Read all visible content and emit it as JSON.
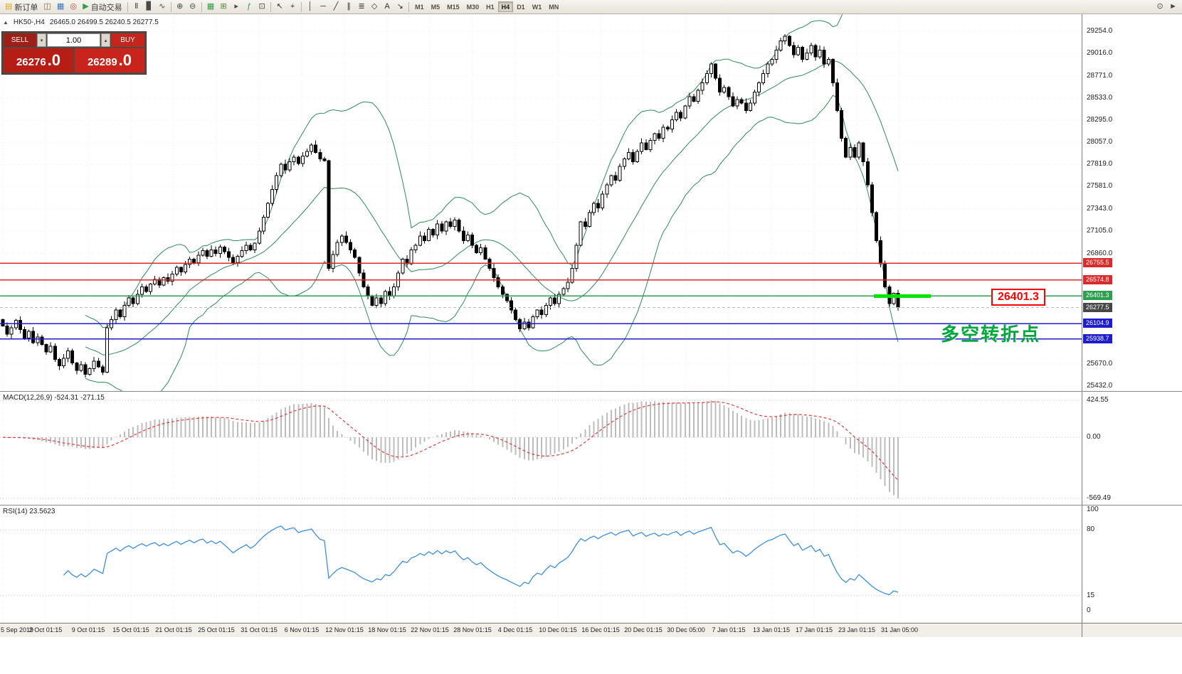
{
  "toolbar": {
    "items": [
      {
        "name": "new-order-button",
        "icon": "new-order-icon",
        "glyph": "▤",
        "glyph_color": "#d8a826",
        "label": "新订单"
      },
      {
        "name": "charts-window-button",
        "icon": "chart-window-icon",
        "glyph": "◫",
        "glyph_color": "#8a6d2f"
      },
      {
        "name": "market-watch-button",
        "icon": "market-watch-icon",
        "glyph": "▦",
        "glyph_color": "#3a77b8"
      },
      {
        "name": "alerts-button",
        "icon": "target-icon",
        "glyph": "◎",
        "glyph_color": "#b84a3a"
      },
      {
        "name": "autotrading-button",
        "icon": "play-icon",
        "glyph": "▶",
        "glyph_color": "#2f9e44",
        "label": "自动交易"
      },
      {
        "type": "sep"
      },
      {
        "name": "bar-chart-button",
        "icon": "bar-chart-icon",
        "glyph": "Ⅱ",
        "glyph_color": "#4a4a4a"
      },
      {
        "name": "candlestick-chart-button",
        "icon": "candlestick-icon",
        "glyph": "▊",
        "glyph_color": "#4a4a4a"
      },
      {
        "name": "line-chart-button",
        "icon": "line-chart-icon",
        "glyph": "∿",
        "glyph_color": "#4a4a4a"
      },
      {
        "type": "sep"
      },
      {
        "name": "zoom-in-button",
        "icon": "zoom-in-icon",
        "glyph": "⊕",
        "glyph_color": "#4a4a4a"
      },
      {
        "name": "zoom-out-button",
        "icon": "zoom-out-icon",
        "glyph": "⊖",
        "glyph_color": "#4a4a4a"
      },
      {
        "type": "sep"
      },
      {
        "name": "tile-windows-button",
        "icon": "tile-windows-icon",
        "glyph": "▦",
        "glyph_color": "#2f9e44"
      },
      {
        "name": "auto-arrange-button",
        "icon": "grid-icon",
        "glyph": "⊞",
        "glyph_color": "#55803a"
      },
      {
        "name": "chart-shift-button",
        "icon": "chart-shift-icon",
        "glyph": "▸",
        "glyph_color": "#4a4a4a"
      },
      {
        "name": "indicators-button",
        "icon": "indicators-icon",
        "glyph": "ƒ",
        "glyph_color": "#2f9e44"
      },
      {
        "name": "templates-button",
        "icon": "templates-icon",
        "glyph": "⊡",
        "glyph_color": "#4a4a4a"
      },
      {
        "type": "sep"
      },
      {
        "name": "cursor-button",
        "icon": "cursor-icon",
        "glyph": "↖",
        "glyph_color": "#333333"
      },
      {
        "name": "crosshair-button",
        "icon": "crosshair-icon",
        "glyph": "+",
        "glyph_color": "#333333"
      },
      {
        "type": "sep"
      },
      {
        "name": "vertical-line-button",
        "icon": "vertical-line-icon",
        "glyph": "│",
        "glyph_color": "#333333"
      },
      {
        "name": "horizontal-line-button",
        "icon": "horizontal-line-icon",
        "glyph": "─",
        "glyph_color": "#333333"
      },
      {
        "name": "trendline-button",
        "icon": "trendline-icon",
        "glyph": "╱",
        "glyph_color": "#333333"
      },
      {
        "name": "channel-button",
        "icon": "channel-icon",
        "glyph": "∥",
        "glyph_color": "#333333"
      },
      {
        "name": "fibonacci-button",
        "icon": "fibonacci-icon",
        "glyph": "≣",
        "glyph_color": "#333333"
      },
      {
        "name": "shapes-button",
        "icon": "shapes-icon",
        "glyph": "◇",
        "glyph_color": "#333333"
      },
      {
        "name": "text-button",
        "icon": "text-icon",
        "glyph": "A",
        "glyph_color": "#333333"
      },
      {
        "name": "arrows-button",
        "icon": "arrows-icon",
        "glyph": "↘",
        "glyph_color": "#333333"
      },
      {
        "type": "sep"
      }
    ],
    "timeframes": [
      "M1",
      "M5",
      "M15",
      "M30",
      "H1",
      "H4",
      "D1",
      "W1",
      "MN"
    ],
    "active_timeframe": "H4",
    "right_items": [
      {
        "name": "magnifier-button",
        "icon": "magnifier-icon",
        "glyph": "⊙",
        "glyph_color": "#4a4a4a"
      },
      {
        "name": "pointer-button",
        "icon": "pointer-icon",
        "glyph": "►",
        "glyph_color": "#4a4a4a"
      }
    ]
  },
  "symbol_info": {
    "toggle_glyph": "▲",
    "name": "HK50-,H4",
    "ohlc": "26465.0 26499.5 26240.5 26277.5"
  },
  "trade_panel": {
    "sell_label": "SELL",
    "buy_label": "BUY",
    "volume": "1.00",
    "spin_down_glyph": "▾",
    "spin_up_glyph": "▴",
    "sell_price_main": "26276",
    "sell_price_frac": ".0",
    "buy_price_main": "26289",
    "buy_price_frac": ".0"
  },
  "annotations": {
    "price_callout": "26401.3",
    "turning_point_text": "多空转折点"
  },
  "price_axis": {
    "ticks": [
      "29254.0",
      "29016.0",
      "28771.0",
      "28533.0",
      "28295.0",
      "28057.0",
      "27819.0",
      "27581.0",
      "27343.0",
      "27105.0",
      "26860.0",
      "25670.0",
      "25432.0"
    ],
    "tags": [
      {
        "value": "26755.5",
        "color": "#d92b2b"
      },
      {
        "value": "26574.8",
        "color": "#d92b2b"
      },
      {
        "value": "26401.3",
        "color": "#2ca04e"
      },
      {
        "value": "26277.5",
        "color": "#474747"
      },
      {
        "value": "26104.9",
        "color": "#1d1dcc"
      },
      {
        "value": "25938.7",
        "color": "#1d1dcc"
      }
    ]
  },
  "time_axis": {
    "labels": [
      "5 Sep 2019",
      "2 Oct 01:15",
      "9 Oct 01:15",
      "15 Oct 01:15",
      "21 Oct 01:15",
      "25 Oct 01:15",
      "31 Oct 01:15",
      "6 Nov 01:15",
      "12 Nov 01:15",
      "18 Nov 01:15",
      "22 Nov 01:15",
      "28 Nov 01:15",
      "4 Dec 01:15",
      "10 Dec 01:15",
      "16 Dec 01:15",
      "20 Dec 01:15",
      "30 Dec 05:00",
      "7 Jan 01:15",
      "13 Jan 01:15",
      "17 Jan 01:15",
      "23 Jan 01:15",
      "31 Jan 05:00"
    ]
  },
  "chart_data": [
    {
      "type": "candlestick",
      "symbol": "HK50-",
      "timeframe": "H4",
      "ohlc_current": {
        "open": 26465.0,
        "high": 26499.5,
        "low": 26240.5,
        "close": 26277.5
      },
      "ylim": [
        25432.0,
        29254.0
      ],
      "first_open": 26150,
      "closes": [
        26080,
        25990,
        26060,
        26140,
        26040,
        25950,
        26020,
        25900,
        25960,
        25880,
        25800,
        25860,
        25720,
        25650,
        25730,
        25810,
        25680,
        25600,
        25660,
        25560,
        25620,
        25700,
        25640,
        25580,
        26060,
        26150,
        26250,
        26180,
        26300,
        26380,
        26320,
        26420,
        26500,
        26450,
        26530,
        26580,
        26520,
        26600,
        26560,
        26640,
        26710,
        26660,
        26740,
        26800,
        26760,
        26840,
        26890,
        26830,
        26900,
        26860,
        26930,
        26880,
        26820,
        26760,
        26830,
        26890,
        26950,
        26900,
        26970,
        27100,
        27250,
        27400,
        27550,
        27700,
        27820,
        27760,
        27850,
        27900,
        27830,
        27910,
        27960,
        28030,
        27950,
        27880,
        27860,
        26700,
        26850,
        26980,
        27050,
        26980,
        26900,
        26820,
        26650,
        26500,
        26400,
        26300,
        26380,
        26320,
        26450,
        26400,
        26500,
        26650,
        26800,
        26750,
        26900,
        26950,
        27050,
        27000,
        27120,
        27060,
        27180,
        27100,
        27200,
        27150,
        27220,
        27100,
        27000,
        27060,
        26950,
        26870,
        26920,
        26800,
        26700,
        26600,
        26500,
        26420,
        26350,
        26250,
        26150,
        26050,
        26120,
        26060,
        26180,
        26250,
        26200,
        26300,
        26380,
        26320,
        26420,
        26480,
        26550,
        26700,
        26950,
        27200,
        27150,
        27300,
        27400,
        27350,
        27500,
        27600,
        27700,
        27650,
        27800,
        27880,
        27950,
        27850,
        27960,
        28050,
        27980,
        28080,
        28150,
        28100,
        28220,
        28200,
        28300,
        28380,
        28320,
        28450,
        28550,
        28500,
        28620,
        28700,
        28800,
        28900,
        28750,
        28600,
        28650,
        28550,
        28450,
        28520,
        28480,
        28400,
        28480,
        28600,
        28700,
        28800,
        28900,
        28950,
        29050,
        29150,
        29200,
        29100,
        29000,
        29080,
        28950,
        29020,
        29100,
        28980,
        29050,
        28900,
        28950,
        28700,
        28400,
        28100,
        27900,
        28000,
        27900,
        28050,
        27850,
        27600,
        27300,
        27000,
        26750,
        26500,
        26320,
        26430,
        26277.5
      ],
      "bollinger": {
        "period": 20,
        "deviation": 2,
        "color": "#2E8B57"
      },
      "horizontal_lines": [
        {
          "price": 26755.5,
          "color": "#d92b2b",
          "style": "solid"
        },
        {
          "price": 26574.8,
          "color": "#d92b2b",
          "style": "solid"
        },
        {
          "price": 26401.3,
          "color": "#2ca04e",
          "style": "solid"
        },
        {
          "price": 26277.5,
          "color": "#b8b8b8",
          "style": "dashed"
        },
        {
          "price": 26104.9,
          "color": "#1d1dcc",
          "style": "solid"
        },
        {
          "price": 25938.7,
          "color": "#1d1dcc",
          "style": "solid"
        }
      ],
      "highlight_segment": {
        "price": 26401.3,
        "color": "#00e400",
        "thickness": 5
      }
    },
    {
      "type": "macd",
      "label": "MACD(12,26,9) -524.31 -271.15",
      "fast": 12,
      "slow": 26,
      "signal": 9,
      "current_macd": -524.31,
      "current_signal": -271.15,
      "scale_labels": [
        "424.55",
        "0.00",
        "-569.49"
      ],
      "histogram_color": "#bdbdbd",
      "signal_color": "#e03c3c"
    },
    {
      "type": "rsi",
      "label": "RSI(14) 23.5623",
      "period": 14,
      "current_value": 23.5623,
      "levels": [
        80,
        15
      ],
      "scale_labels": [
        "100",
        "80",
        "15",
        "0"
      ],
      "line_color": "#3e8ede"
    }
  ]
}
